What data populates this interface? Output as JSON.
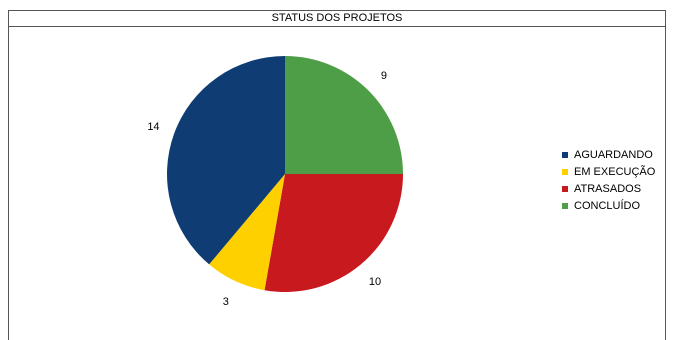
{
  "chart_data": {
    "type": "pie",
    "title": "STATUS DOS PROJETOS",
    "categories": [
      "AGUARDANDO",
      "EM EXECUÇÃO",
      "ATRASADOS",
      "CONCLUÍDO"
    ],
    "values": [
      14,
      3,
      10,
      9
    ],
    "colors": [
      "#0f3d73",
      "#ffd000",
      "#c8191e",
      "#4e9e47"
    ],
    "legend_position": "right"
  }
}
